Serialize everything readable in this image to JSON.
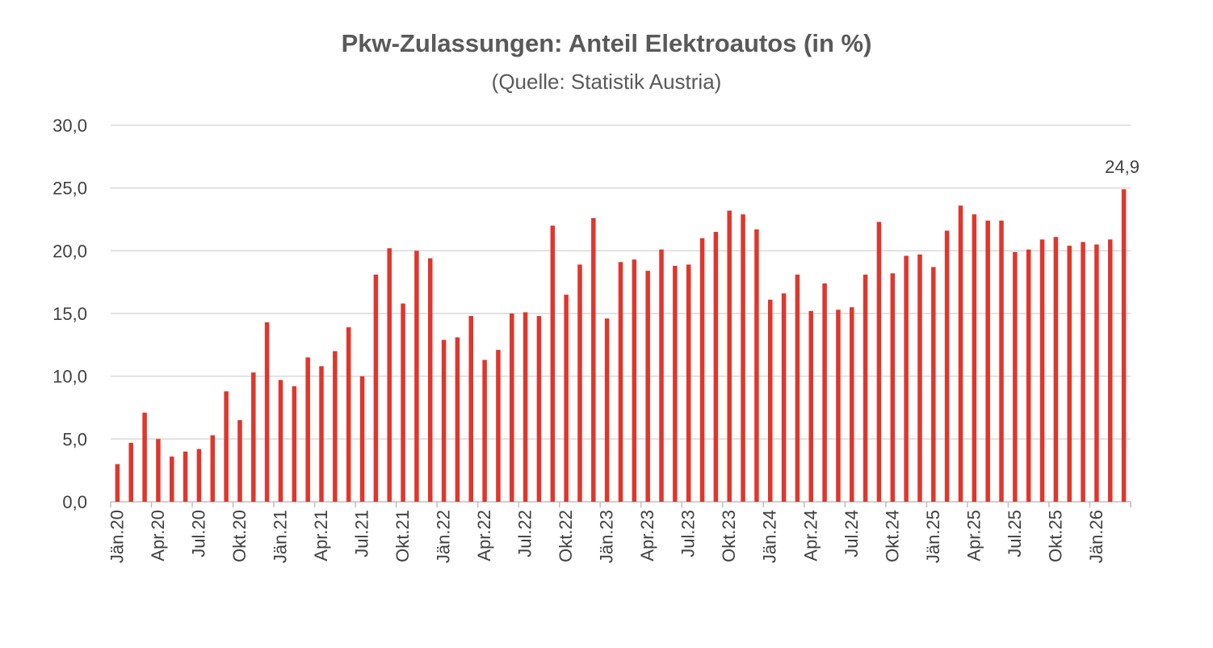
{
  "chart_data": {
    "type": "bar",
    "title": "Pkw-Zulassungen: Anteil Elektroautos (in %)",
    "subtitle": "(Quelle: Statistik Austria)",
    "xlabel": "",
    "ylabel": "",
    "ylim": [
      0,
      30
    ],
    "yticks": [
      "0,0",
      "5,0",
      "10,0",
      "15,0",
      "20,0",
      "25,0",
      "30,0"
    ],
    "ytick_values": [
      0,
      5,
      10,
      15,
      20,
      25,
      30
    ],
    "grid": true,
    "bar_color": "#e0362c",
    "tick_labels": [
      "Jän.20",
      "Apr.20",
      "Jul.20",
      "Okt.20",
      "Jän.21",
      "Apr.21",
      "Jul.21",
      "Okt.21",
      "Jän.22",
      "Apr.22",
      "Jul.22",
      "Okt.22",
      "Jän.23",
      "Apr.23",
      "Jul.23",
      "Okt.23",
      "Jän.24",
      "Apr.24",
      "Jul.24",
      "Okt.24",
      "Jän.25",
      "Apr.25",
      "Jul.25",
      "Okt.25",
      "Jän.26"
    ],
    "tick_every": 3,
    "values": [
      3.0,
      4.7,
      7.1,
      5.0,
      3.6,
      4.0,
      4.2,
      5.3,
      8.8,
      6.5,
      10.3,
      14.3,
      9.7,
      9.2,
      11.5,
      10.8,
      12.0,
      13.9,
      10.0,
      18.1,
      20.2,
      15.8,
      20.0,
      19.4,
      12.9,
      13.1,
      14.8,
      11.3,
      12.1,
      15.0,
      15.1,
      14.8,
      22.0,
      16.5,
      18.9,
      22.6,
      14.6,
      19.1,
      19.3,
      18.4,
      20.1,
      18.8,
      18.9,
      21.0,
      21.5,
      23.2,
      22.9,
      21.7,
      16.1,
      16.6,
      18.1,
      15.2,
      17.4,
      15.3,
      15.5,
      18.1,
      22.3,
      18.2,
      19.6,
      19.7,
      18.7,
      21.6,
      23.6,
      22.9,
      22.4,
      22.4,
      19.9,
      20.1,
      20.9,
      21.1,
      20.4,
      20.7,
      20.5,
      20.9,
      24.9
    ],
    "annotation": "24,9"
  }
}
